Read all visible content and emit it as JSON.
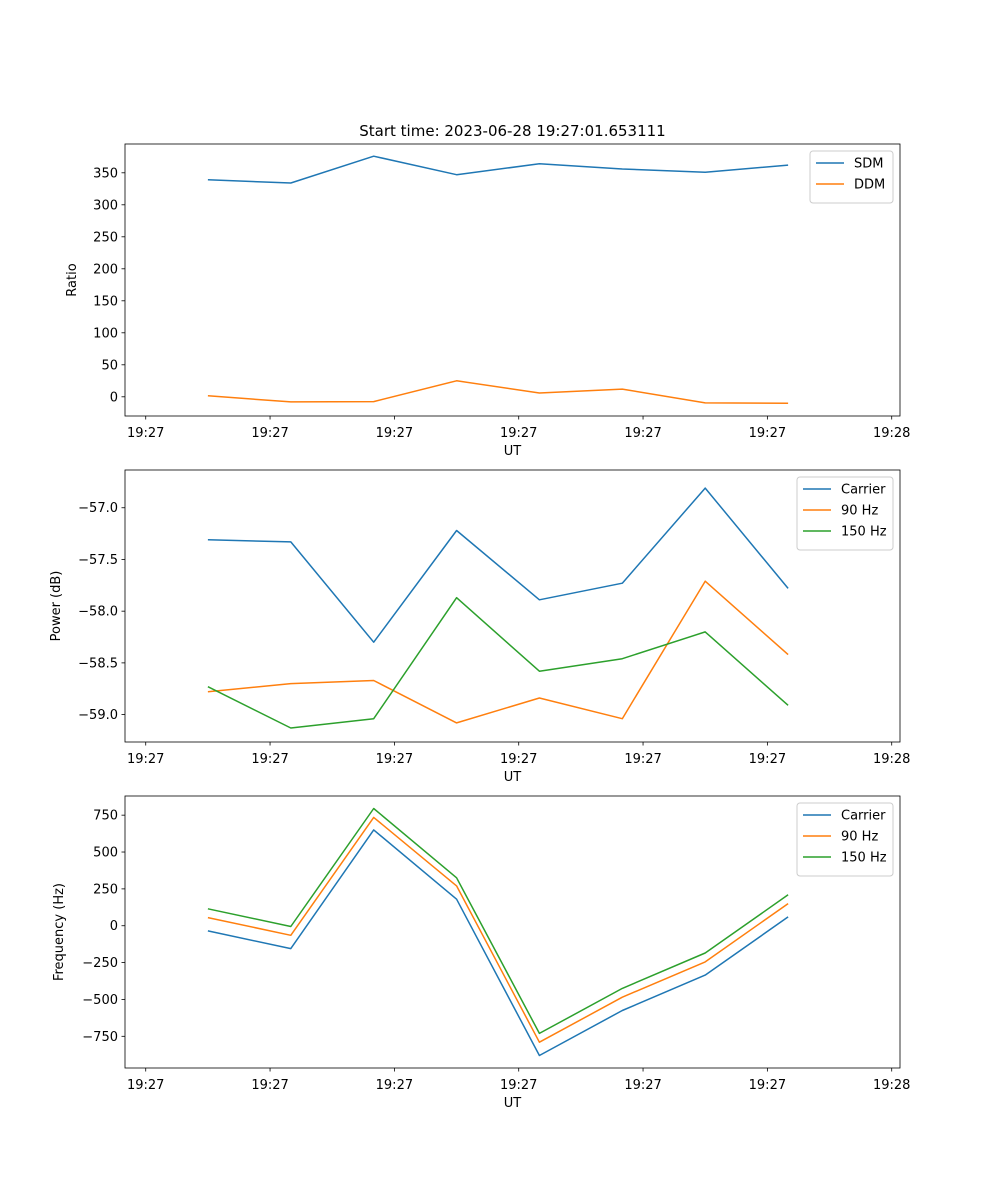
{
  "figure": {
    "title": "Start time: 2023-06-28 19:27:01.653111"
  },
  "chart_data": [
    {
      "type": "line",
      "title": "Start time: 2023-06-28 19:27:01.653111",
      "xlabel": "UT",
      "ylabel": "Ratio",
      "x_tick_labels": [
        "19:27",
        "19:27",
        "19:27",
        "19:27",
        "19:27",
        "19:27",
        "19:28"
      ],
      "y_ticks": [
        0,
        50,
        100,
        150,
        200,
        250,
        300,
        350
      ],
      "y_tick_labels": [
        "0",
        "50",
        "100",
        "150",
        "200",
        "250",
        "300",
        "350"
      ],
      "ylim": [
        -30,
        395
      ],
      "xlim": [
        -0.75,
        8.6
      ],
      "x_ticks": [
        -0.5,
        1.0,
        2.5,
        4.0,
        5.5,
        7.0,
        8.5
      ],
      "x": [
        0.25,
        1.25,
        2.25,
        3.25,
        4.25,
        5.25,
        6.25,
        7.25
      ],
      "legend_position": "upper right",
      "series": [
        {
          "name": "SDM",
          "color": "#1f77b4",
          "values": [
            339,
            334,
            376,
            347,
            364,
            356,
            351,
            362
          ]
        },
        {
          "name": "DDM",
          "color": "#ff7f0e",
          "values": [
            1.5,
            -8,
            -7.5,
            25,
            6,
            12,
            -9.5,
            -10
          ]
        }
      ]
    },
    {
      "type": "line",
      "title": "",
      "xlabel": "UT",
      "ylabel": "Power (dB)",
      "x_tick_labels": [
        "19:27",
        "19:27",
        "19:27",
        "19:27",
        "19:27",
        "19:27",
        "19:28"
      ],
      "y_ticks": [
        -59.0,
        -58.5,
        -58.0,
        -57.5,
        -57.0
      ],
      "y_tick_labels": [
        "−59.0",
        "−58.5",
        "−58.0",
        "−57.5",
        "−57.0"
      ],
      "ylim": [
        -59.265,
        -56.635
      ],
      "xlim": [
        -0.75,
        8.6
      ],
      "x_ticks": [
        -0.5,
        1.0,
        2.5,
        4.0,
        5.5,
        7.0,
        8.5
      ],
      "x": [
        0.25,
        1.25,
        2.25,
        3.25,
        4.25,
        5.25,
        6.25,
        7.25
      ],
      "legend_position": "upper right",
      "series": [
        {
          "name": "Carrier",
          "color": "#1f77b4",
          "values": [
            -57.31,
            -57.33,
            -58.3,
            -57.22,
            -57.89,
            -57.73,
            -56.81,
            -57.78
          ]
        },
        {
          "name": "90 Hz",
          "color": "#ff7f0e",
          "values": [
            -58.78,
            -58.7,
            -58.67,
            -59.08,
            -58.84,
            -59.04,
            -57.71,
            -58.42
          ]
        },
        {
          "name": "150 Hz",
          "color": "#2ca02c",
          "values": [
            -58.73,
            -59.13,
            -59.04,
            -57.87,
            -58.58,
            -58.46,
            -58.2,
            -58.91
          ]
        }
      ]
    },
    {
      "type": "line",
      "title": "",
      "xlabel": "UT",
      "ylabel": "Frequency (Hz)",
      "x_tick_labels": [
        "19:27",
        "19:27",
        "19:27",
        "19:27",
        "19:27",
        "19:27",
        "19:28"
      ],
      "y_ticks": [
        -750,
        -500,
        -250,
        0,
        250,
        500,
        750
      ],
      "y_tick_labels": [
        "−750",
        "−500",
        "−250",
        "0",
        "250",
        "500",
        "750"
      ],
      "ylim": [
        -965,
        880
      ],
      "xlim": [
        -0.75,
        8.6
      ],
      "x_ticks": [
        -0.5,
        1.0,
        2.5,
        4.0,
        5.5,
        7.0,
        8.5
      ],
      "x": [
        0.25,
        1.25,
        2.25,
        3.25,
        4.25,
        5.25,
        6.25,
        7.25
      ],
      "legend_position": "upper right",
      "series": [
        {
          "name": "Carrier",
          "color": "#1f77b4",
          "values": [
            -35,
            -155,
            650,
            180,
            -880,
            -575,
            -335,
            60
          ]
        },
        {
          "name": "90 Hz",
          "color": "#ff7f0e",
          "values": [
            55,
            -65,
            735,
            270,
            -790,
            -485,
            -245,
            150
          ]
        },
        {
          "name": "150 Hz",
          "color": "#2ca02c",
          "values": [
            115,
            -5,
            795,
            325,
            -730,
            -425,
            -185,
            210
          ]
        }
      ]
    }
  ]
}
